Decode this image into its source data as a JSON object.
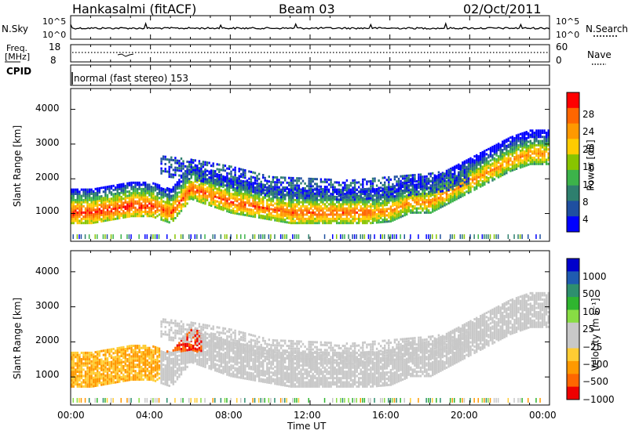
{
  "header": {
    "station": "Hankasalmi (fitACF)",
    "beam": "Beam 03",
    "date": "02/Oct/2011"
  },
  "top_panel": {
    "left_label": "N.Sky",
    "right_label": "N.Search",
    "left_ticks": [
      "10^5",
      "10^0"
    ],
    "right_ticks": [
      "10^5",
      "10^0"
    ]
  },
  "freq_panel": {
    "left_label_line1": "Freq.",
    "left_label_line2": "[MHz]",
    "right_label": "Nave",
    "left_ticks": [
      "18",
      "8"
    ],
    "right_ticks": [
      "60",
      "0"
    ]
  },
  "cpid_panel": {
    "label": "CPID",
    "text": "normal (fast stereo) 153"
  },
  "colorbars": {
    "power": {
      "label": "Power [dB]",
      "ticks": [
        "28",
        "24",
        "20",
        "16",
        "12",
        "8",
        "4"
      ],
      "colors": [
        "#ff0000",
        "#ff6600",
        "#ff9900",
        "#ffcc00",
        "#88c400",
        "#3cb34a",
        "#2e7f6e",
        "#1f4fa0",
        "#0000ff"
      ]
    },
    "velocity": {
      "label": "Velocity [m s⁻¹]",
      "ticks": [
        "1000",
        "500",
        "100",
        "25",
        "−25",
        "−100",
        "−500",
        "−1000"
      ],
      "colors": [
        "#0000cc",
        "#1f5bb0",
        "#2e8f6e",
        "#2fb52f",
        "#88dd44",
        "#c8c8c8",
        "#c8c8c8",
        "#ffcc33",
        "#ff9900",
        "#ff6600",
        "#ee0000"
      ]
    }
  },
  "chart_data": [
    {
      "type": "heatmap",
      "title": "Power",
      "ylabel": "Slant Range [km]",
      "xlabel": "",
      "ylim": [
        200,
        4600
      ],
      "yticks": [
        "1000",
        "2000",
        "3000",
        "4000"
      ],
      "x_ticks": [
        "00:00",
        "04:00",
        "08:00",
        "12:00",
        "16:00",
        "20:00",
        "00:00"
      ],
      "bands": [
        {
          "name": "main",
          "x": [
            0,
            1,
            2,
            3,
            4,
            5,
            6,
            7,
            8,
            9,
            10,
            11,
            12,
            13,
            14,
            15,
            16,
            17,
            18,
            19,
            20,
            21,
            22,
            23,
            24
          ],
          "y": [
            1000,
            1000,
            1100,
            1200,
            1200,
            1000,
            1700,
            1500,
            1300,
            1200,
            1100,
            1000,
            1000,
            1000,
            1000,
            1000,
            1050,
            1300,
            1300,
            1600,
            1900,
            2200,
            2500,
            2700,
            2700
          ],
          "width": 400,
          "value": 24
        },
        {
          "name": "upper",
          "x": [
            4.5,
            6,
            8,
            10,
            12,
            14,
            16,
            18,
            19,
            20
          ],
          "y": [
            2300,
            2200,
            2000,
            1700,
            1650,
            1600,
            1700,
            1800,
            1900,
            2100
          ],
          "width": 500,
          "value": 10
        }
      ]
    },
    {
      "type": "heatmap",
      "title": "Velocity",
      "ylabel": "Slant Range [km]",
      "xlabel": "Time UT",
      "ylim": [
        200,
        4600
      ],
      "yticks": [
        "1000",
        "2000",
        "3000",
        "4000"
      ],
      "x_ticks": [
        "00:00",
        "04:00",
        "08:00",
        "12:00",
        "16:00",
        "20:00",
        "00:00"
      ]
    }
  ]
}
